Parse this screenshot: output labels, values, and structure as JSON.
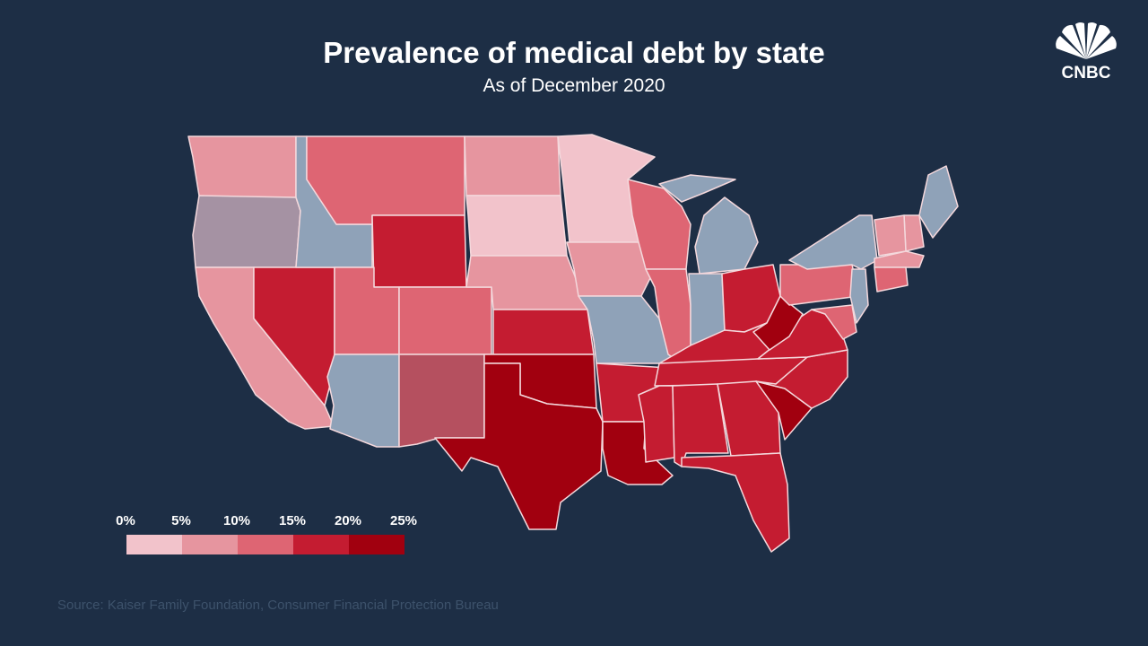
{
  "header": {
    "title": "Prevalence of medical debt by state",
    "subtitle": "As of December 2020"
  },
  "logo": {
    "text": "CNBC"
  },
  "source": "Source: Kaiser Family Foundation, Consumer Financial Protection Bureau",
  "chart_data": {
    "type": "choropleth",
    "title": "Prevalence of medical debt by state",
    "subtitle": "As of December 2020",
    "legend": {
      "ticks": [
        "0%",
        "5%",
        "10%",
        "15%",
        "20%",
        "25%"
      ],
      "bins": [
        {
          "range": [
            0,
            5
          ],
          "color": "#f2c3cb"
        },
        {
          "range": [
            5,
            10
          ],
          "color": "#e6959f"
        },
        {
          "range": [
            10,
            15
          ],
          "color": "#de6573"
        },
        {
          "range": [
            15,
            20
          ],
          "color": "#c41c31"
        },
        {
          "range": [
            20,
            25
          ],
          "color": "#a1000f"
        }
      ],
      "nodata_color": "#8fa2b8"
    },
    "states": {
      "WA": "5-10",
      "OR": "mixed",
      "CA": "5-10",
      "NV": "15-20",
      "ID": "nodata",
      "MT": "10-15",
      "WY": "15-20",
      "UT": "10-15",
      "CO": "10-15",
      "AZ": "nodata",
      "NM": "mixed",
      "ND": "5-10",
      "SD": "0-5",
      "NE": "5-10",
      "KS": "15-20",
      "OK": "20-25",
      "TX": "20-25",
      "MN": "0-5",
      "IA": "5-10",
      "MO": "nodata",
      "AR": "15-20",
      "LA": "20-25",
      "WI": "10-15",
      "IL": "10-15",
      "MI": "nodata",
      "IN": "nodata",
      "OH": "15-20",
      "KY": "15-20",
      "TN": "15-20",
      "MS": "15-20",
      "AL": "15-20",
      "GA": "15-20",
      "FL": "15-20",
      "SC": "20-25",
      "NC": "15-20",
      "VA": "15-20",
      "WV": "20-25",
      "PA": "10-15",
      "NY": "nodata",
      "ME": "nodata",
      "NH": "5-10",
      "VT": "5-10",
      "MA": "5-10",
      "CT": "10-15",
      "NJ": "nodata",
      "MD": "10-15"
    }
  }
}
